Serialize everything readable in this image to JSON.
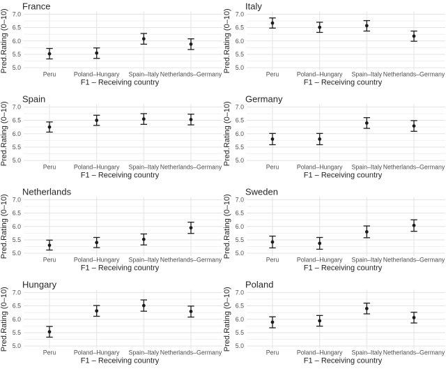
{
  "chart_data": {
    "type": "scatter",
    "subtype": "point-errorbar-facets",
    "facet_layout": "2x4-grid",
    "categories": [
      "Peru",
      "Poland–Hungary",
      "Spain–Italy",
      "Netherlands–Germany"
    ],
    "xlabel": "F1 – Receiving country",
    "ylabel": "Pred.Rating (0–10)",
    "ylim": [
      4.9,
      7.1
    ],
    "yticks": [
      5.0,
      5.5,
      6.0,
      6.5,
      7.0
    ],
    "ytick_labels": [
      "5.0",
      "5.5",
      "6.0",
      "6.5",
      "7.0"
    ],
    "minor_yticks": [
      5.25,
      5.75,
      6.25,
      6.75
    ],
    "grid": {
      "horizontal_major": true,
      "horizontal_minor": true,
      "vertical_at_categories": true
    },
    "legend": "none",
    "colors": {
      "point": "#1c1c1c",
      "errorbar": "#1c1c1c",
      "grid_major": "#e3e3e3",
      "grid_minor": "#f1f1f1",
      "tick_text": "#4d4d4d",
      "label_text": "#222222",
      "title_text": "#262626",
      "background": "#ffffff"
    },
    "facets": [
      {
        "title": "France",
        "points": [
          {
            "category": "Peru",
            "y": 5.52,
            "lo": 5.33,
            "hi": 5.72
          },
          {
            "category": "Poland–Hungary",
            "y": 5.55,
            "lo": 5.35,
            "hi": 5.74
          },
          {
            "category": "Spain–Italy",
            "y": 6.08,
            "lo": 5.88,
            "hi": 6.28
          },
          {
            "category": "Netherlands–Germany",
            "y": 5.88,
            "lo": 5.68,
            "hi": 6.08
          }
        ]
      },
      {
        "title": "Italy",
        "points": [
          {
            "category": "Peru",
            "y": 6.67,
            "lo": 6.48,
            "hi": 6.86
          },
          {
            "category": "Poland–Hungary",
            "y": 6.51,
            "lo": 6.32,
            "hi": 6.7
          },
          {
            "category": "Spain–Italy",
            "y": 6.57,
            "lo": 6.37,
            "hi": 6.76
          },
          {
            "category": "Netherlands–Germany",
            "y": 6.18,
            "lo": 5.99,
            "hi": 6.37
          }
        ]
      },
      {
        "title": "Spain",
        "points": [
          {
            "category": "Peru",
            "y": 6.25,
            "lo": 6.06,
            "hi": 6.44
          },
          {
            "category": "Poland–Hungary",
            "y": 6.5,
            "lo": 6.31,
            "hi": 6.69
          },
          {
            "category": "Spain–Italy",
            "y": 6.55,
            "lo": 6.35,
            "hi": 6.75
          },
          {
            "category": "Netherlands–Germany",
            "y": 6.53,
            "lo": 6.33,
            "hi": 6.73
          }
        ]
      },
      {
        "title": "Germany",
        "points": [
          {
            "category": "Peru",
            "y": 5.8,
            "lo": 5.59,
            "hi": 6.01
          },
          {
            "category": "Poland–Hungary",
            "y": 5.8,
            "lo": 5.59,
            "hi": 6.01
          },
          {
            "category": "Spain–Italy",
            "y": 6.4,
            "lo": 6.2,
            "hi": 6.6
          },
          {
            "category": "Netherlands–Germany",
            "y": 6.29,
            "lo": 6.09,
            "hi": 6.49
          }
        ]
      },
      {
        "title": "Netherlands",
        "points": [
          {
            "category": "Peru",
            "y": 5.3,
            "lo": 5.12,
            "hi": 5.49
          },
          {
            "category": "Poland–Hungary",
            "y": 5.4,
            "lo": 5.21,
            "hi": 5.59
          },
          {
            "category": "Spain–Italy",
            "y": 5.52,
            "lo": 5.31,
            "hi": 5.72
          },
          {
            "category": "Netherlands–Germany",
            "y": 5.95,
            "lo": 5.74,
            "hi": 6.16
          }
        ]
      },
      {
        "title": "Sweden",
        "points": [
          {
            "category": "Peru",
            "y": 5.42,
            "lo": 5.2,
            "hi": 5.64
          },
          {
            "category": "Poland–Hungary",
            "y": 5.37,
            "lo": 5.15,
            "hi": 5.59
          },
          {
            "category": "Spain–Italy",
            "y": 5.8,
            "lo": 5.58,
            "hi": 6.02
          },
          {
            "category": "Netherlands–Germany",
            "y": 6.04,
            "lo": 5.82,
            "hi": 6.25
          }
        ]
      },
      {
        "title": "Hungary",
        "points": [
          {
            "category": "Peru",
            "y": 5.53,
            "lo": 5.33,
            "hi": 5.73
          },
          {
            "category": "Poland–Hungary",
            "y": 6.31,
            "lo": 6.11,
            "hi": 6.51
          },
          {
            "category": "Spain–Italy",
            "y": 6.51,
            "lo": 6.3,
            "hi": 6.72
          },
          {
            "category": "Netherlands–Germany",
            "y": 6.29,
            "lo": 6.08,
            "hi": 6.49
          }
        ]
      },
      {
        "title": "Poland",
        "points": [
          {
            "category": "Peru",
            "y": 5.89,
            "lo": 5.68,
            "hi": 6.09
          },
          {
            "category": "Poland–Hungary",
            "y": 5.94,
            "lo": 5.74,
            "hi": 6.14
          },
          {
            "category": "Spain–Italy",
            "y": 6.4,
            "lo": 6.2,
            "hi": 6.6
          },
          {
            "category": "Netherlands–Germany",
            "y": 6.06,
            "lo": 5.86,
            "hi": 6.26
          }
        ]
      }
    ]
  }
}
